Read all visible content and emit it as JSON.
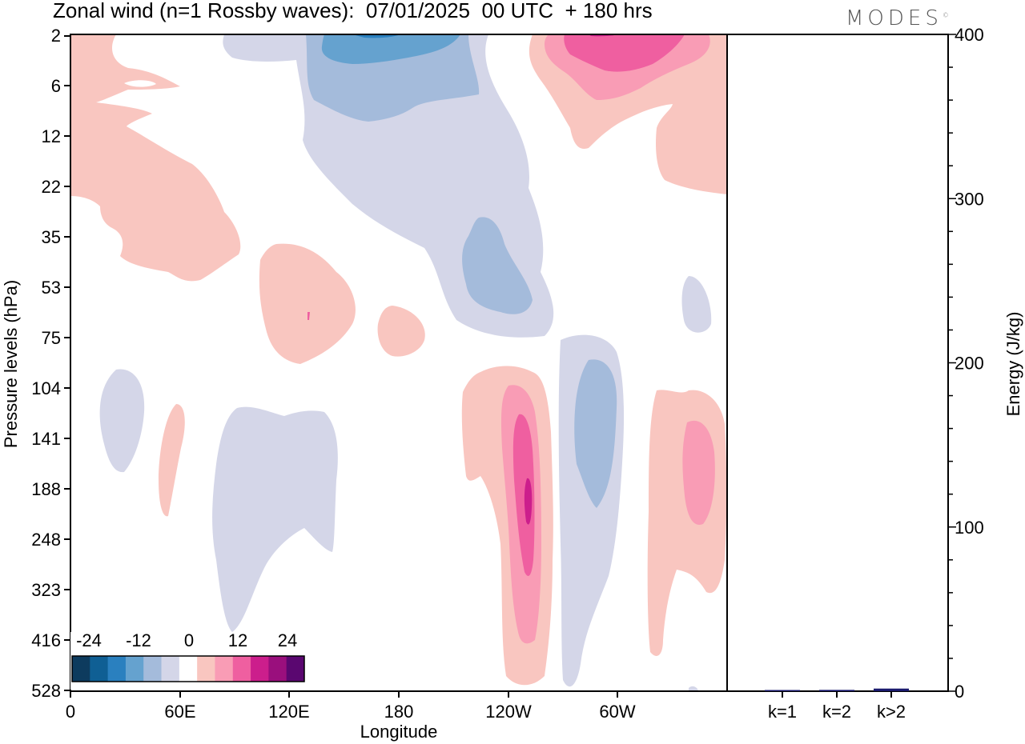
{
  "title": "Zonal wind (n=1 Rossby waves):  07/01/2025  00 UTC  + 180 hrs",
  "logo_text": "MODES",
  "logo_mark": "©",
  "chart_data": [
    {
      "type": "heatmap",
      "title": "Zonal wind (n=1 Rossby waves):  07/01/2025  00 UTC  + 180 hrs",
      "xlabel": "Longitude",
      "ylabel": "Pressure levels (hPa)",
      "x_tick_labels": [
        "0",
        "60E",
        "120E",
        "180",
        "120W",
        "60W"
      ],
      "y_tick_labels": [
        "2",
        "6",
        "12",
        "22",
        "35",
        "53",
        "75",
        "104",
        "141",
        "188",
        "248",
        "323",
        "416",
        "528"
      ],
      "colorbar": {
        "labels": [
          "-24",
          "-12",
          "0",
          "12",
          "24"
        ],
        "levels": [
          -24,
          -20,
          -16,
          -12,
          -8,
          -4,
          4,
          8,
          12,
          16,
          20,
          24
        ],
        "colors": [
          "#0d3b5e",
          "#0f5f94",
          "#2a80bf",
          "#65a2cf",
          "#a4bbdb",
          "#d4d6e8",
          "#ffffff",
          "#f9c6c0",
          "#f99cb5",
          "#ef5fa0",
          "#cc1e8c",
          "#9a0f7d",
          "#5a0770"
        ]
      },
      "contours": [
        {
          "value": -4,
          "color": "#d4d6e8",
          "name": "tropopause-negative-tongue"
        },
        {
          "value": -8,
          "color": "#a4bbdb",
          "name": "upper-negative"
        },
        {
          "value": -12,
          "color": "#65a2cf",
          "name": "upper-negative-core"
        },
        {
          "value": 4,
          "color": "#f9c6c0",
          "name": "positive-regions"
        },
        {
          "value": 8,
          "color": "#f99cb5",
          "name": "positive-mid"
        },
        {
          "value": 12,
          "color": "#ef5fa0",
          "name": "positive-core"
        },
        {
          "value": 16,
          "color": "#cc1e8c",
          "name": "positive-peak"
        }
      ]
    },
    {
      "type": "bar",
      "categories": [
        "k=1",
        "k=2",
        "k>2"
      ],
      "values": [
        0.6,
        0.8,
        1.6
      ],
      "ylabel": "Energy (J/kg)",
      "ylim": [
        0,
        400
      ],
      "y_tick_labels": [
        "0",
        "100",
        "200",
        "300",
        "400"
      ],
      "bar_color": "#1a1a6e"
    }
  ]
}
